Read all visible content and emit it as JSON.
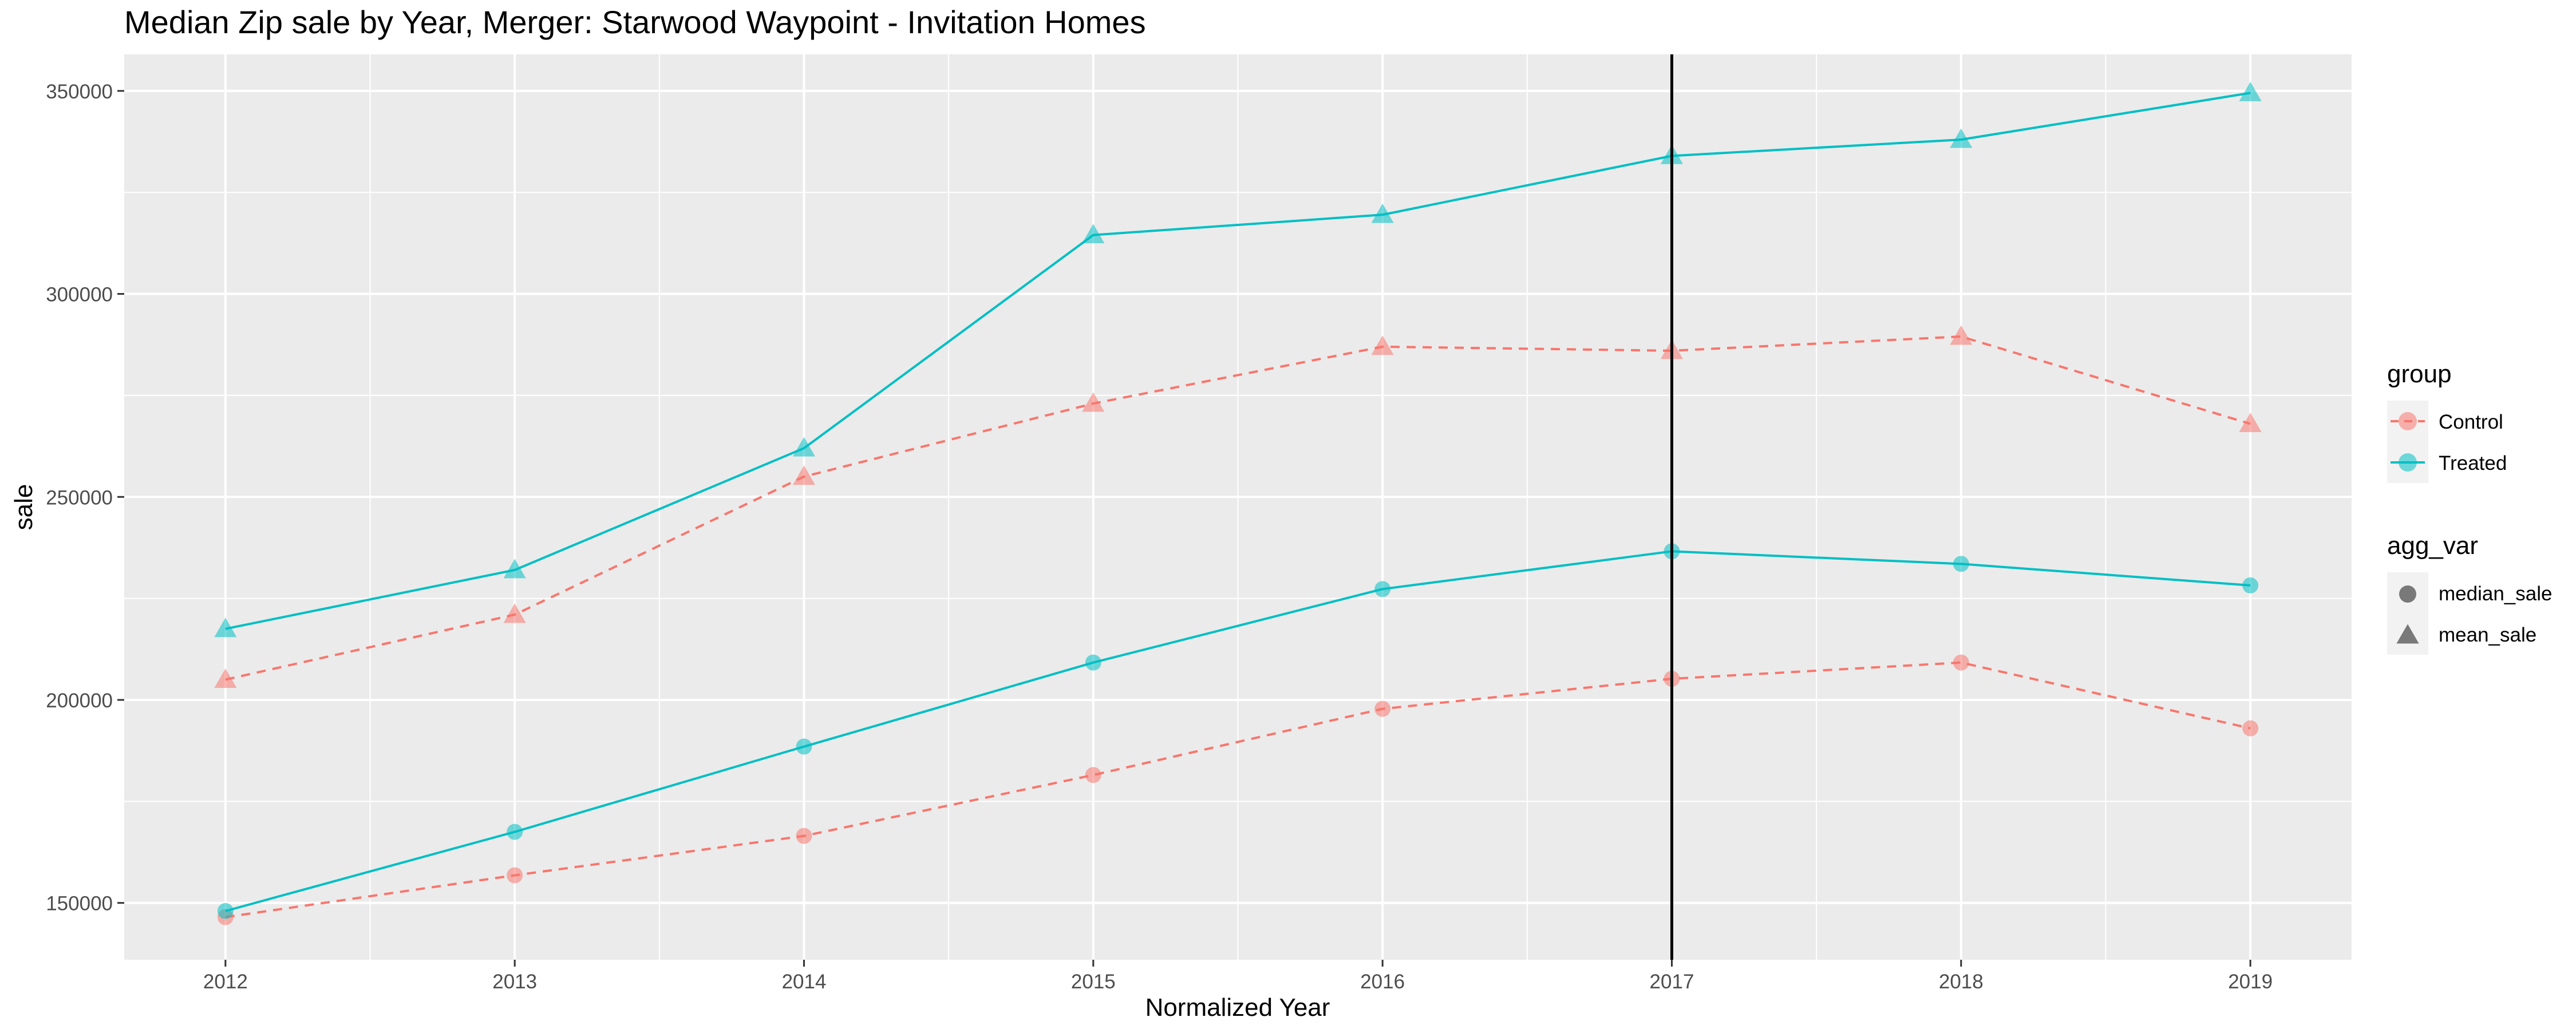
{
  "chart_data": {
    "type": "line",
    "title": "Median Zip sale by Year, Merger: Starwood Waypoint - Invitation Homes",
    "xlabel": "Normalized Year",
    "ylabel": "sale",
    "x": [
      2012,
      2013,
      2014,
      2015,
      2016,
      2017,
      2018,
      2019
    ],
    "xlim": [
      2011.65,
      2019.35
    ],
    "ylim": [
      136000,
      359000
    ],
    "y_ticks": [
      150000,
      200000,
      250000,
      300000,
      350000
    ],
    "y_tick_labels": [
      "150000",
      "200000",
      "250000",
      "300000",
      "350000"
    ],
    "x_tick_labels": [
      "2012",
      "2013",
      "2014",
      "2015",
      "2016",
      "2017",
      "2018",
      "2019"
    ],
    "vline": 2017,
    "grid": true,
    "legend_position": "right",
    "colors": {
      "Control": "#F8766D",
      "Treated": "#00BFC4",
      "panel": "#EBEBEB",
      "vline": "#000000"
    },
    "legend": {
      "group": {
        "title": "group",
        "items": [
          "Control",
          "Treated"
        ]
      },
      "agg_var": {
        "title": "agg_var",
        "items": [
          "median_sale",
          "mean_sale"
        ]
      }
    },
    "series": [
      {
        "group": "Control",
        "agg_var": "median_sale",
        "linetype": "dashed",
        "shape": "circle",
        "values": [
          146500,
          156800,
          166500,
          181500,
          197800,
          205200,
          209200,
          193000
        ]
      },
      {
        "group": "Treated",
        "agg_var": "median_sale",
        "linetype": "solid",
        "shape": "circle",
        "values": [
          148000,
          167500,
          188500,
          209200,
          227300,
          236600,
          233500,
          228200
        ]
      },
      {
        "group": "Control",
        "agg_var": "mean_sale",
        "linetype": "dashed",
        "shape": "triangle",
        "values": [
          205000,
          221000,
          255000,
          273000,
          287000,
          286000,
          289500,
          268000
        ]
      },
      {
        "group": "Treated",
        "agg_var": "mean_sale",
        "linetype": "solid",
        "shape": "triangle",
        "values": [
          217500,
          232000,
          262000,
          314500,
          319500,
          334000,
          338000,
          349500
        ]
      }
    ]
  }
}
